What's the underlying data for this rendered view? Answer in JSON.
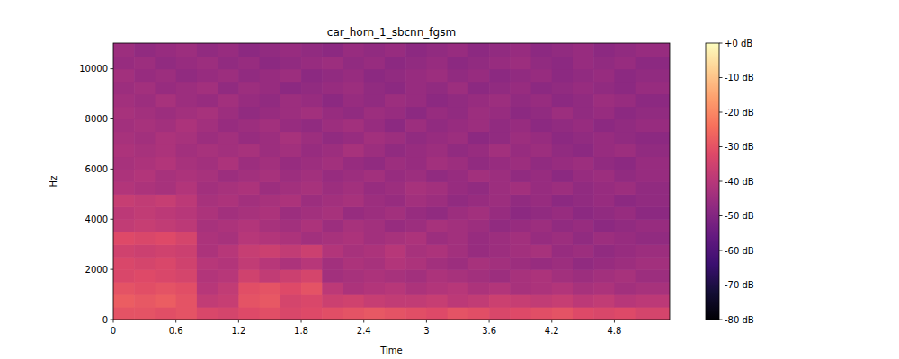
{
  "chart_data": {
    "type": "heatmap",
    "title": "car_horn_1_sbcnn_fgsm",
    "x_label": "Time",
    "y_label": "Hz",
    "x_edges": [
      0,
      0.2,
      0.4,
      0.6,
      0.8,
      1,
      1.2,
      1.4,
      1.6,
      1.8,
      2,
      2.2,
      2.4,
      2.6,
      2.8,
      3,
      3.2,
      3.4,
      3.6,
      3.8,
      4,
      4.2,
      4.4,
      4.6,
      4.8,
      5,
      5.33
    ],
    "y_edges": [
      0,
      500,
      1000,
      1500,
      2000,
      2500,
      3000,
      3500,
      4000,
      4500,
      5000,
      5500,
      6000,
      6500,
      7000,
      7500,
      8000,
      8500,
      9000,
      9500,
      10000,
      10500,
      11025
    ],
    "cells": [
      [
        -30,
        -30,
        -31,
        -30,
        -33,
        -34,
        -32,
        -31,
        -33,
        -32,
        -31,
        -30,
        -29,
        -30,
        -31,
        -32,
        -30,
        -31,
        -33,
        -32,
        -31,
        -30,
        -32,
        -33,
        -32,
        -34
      ],
      [
        -28,
        -29,
        -28,
        -30,
        -38,
        -37,
        -30,
        -29,
        -34,
        -33,
        -36,
        -35,
        -37,
        -38,
        -38,
        -37,
        -39,
        -38,
        -36,
        -37,
        -38,
        -37,
        -39,
        -38,
        -40,
        -39
      ],
      [
        -30,
        -31,
        -30,
        -31,
        -40,
        -38,
        -31,
        -30,
        -32,
        -30,
        -39,
        -42,
        -41,
        -40,
        -42,
        -41,
        -40,
        -42,
        -41,
        -43,
        -42,
        -41,
        -43,
        -42,
        -44,
        -43
      ],
      [
        -33,
        -32,
        -33,
        -34,
        -41,
        -40,
        -35,
        -38,
        -36,
        -34,
        -44,
        -43,
        -42,
        -43,
        -44,
        -42,
        -43,
        -44,
        -45,
        -43,
        -42,
        -44,
        -45,
        -44,
        -43,
        -45
      ],
      [
        -33,
        -34,
        -33,
        -35,
        -40,
        -41,
        -38,
        -40,
        -42,
        -40,
        -44,
        -42,
        -43,
        -41,
        -42,
        -44,
        -45,
        -43,
        -44,
        -45,
        -46,
        -45,
        -47,
        -46,
        -45,
        -44
      ],
      [
        -35,
        -36,
        -35,
        -36,
        -42,
        -40,
        -37,
        -36,
        -38,
        -36,
        -41,
        -43,
        -42,
        -40,
        -43,
        -42,
        -44,
        -46,
        -45,
        -44,
        -43,
        -46,
        -45,
        -47,
        -46,
        -45
      ],
      [
        -32,
        -33,
        -32,
        -34,
        -42,
        -43,
        -40,
        -41,
        -42,
        -44,
        -43,
        -42,
        -44,
        -43,
        -42,
        -45,
        -44,
        -46,
        -45,
        -44,
        -46,
        -45,
        -47,
        -45,
        -46,
        -47
      ],
      [
        -38,
        -37,
        -38,
        -39,
        -43,
        -42,
        -41,
        -43,
        -44,
        -42,
        -45,
        -43,
        -44,
        -46,
        -45,
        -43,
        -44,
        -45,
        -47,
        -46,
        -45,
        -47,
        -46,
        -48,
        -47,
        -46
      ],
      [
        -39,
        -38,
        -39,
        -40,
        -42,
        -44,
        -43,
        -42,
        -45,
        -44,
        -43,
        -46,
        -45,
        -44,
        -46,
        -47,
        -45,
        -44,
        -46,
        -48,
        -47,
        -46,
        -48,
        -47,
        -46,
        -48
      ],
      [
        -37,
        -38,
        -37,
        -39,
        -43,
        -42,
        -44,
        -43,
        -42,
        -45,
        -44,
        -43,
        -45,
        -46,
        -44,
        -45,
        -47,
        -46,
        -45,
        -47,
        -46,
        -48,
        -47,
        -46,
        -48,
        -47
      ],
      [
        -41,
        -42,
        -43,
        -41,
        -44,
        -43,
        -42,
        -45,
        -44,
        -43,
        -45,
        -44,
        -46,
        -45,
        -43,
        -44,
        -46,
        -47,
        -45,
        -44,
        -46,
        -45,
        -47,
        -46,
        -45,
        -47
      ],
      [
        -42,
        -41,
        -43,
        -42,
        -43,
        -45,
        -44,
        -43,
        -45,
        -44,
        -46,
        -45,
        -44,
        -46,
        -45,
        -47,
        -46,
        -44,
        -45,
        -47,
        -46,
        -48,
        -46,
        -45,
        -47,
        -46
      ],
      [
        -43,
        -42,
        -41,
        -43,
        -44,
        -42,
        -45,
        -44,
        -46,
        -45,
        -44,
        -46,
        -47,
        -45,
        -46,
        -44,
        -45,
        -47,
        -46,
        -45,
        -47,
        -46,
        -45,
        -47,
        -48,
        -46
      ],
      [
        -42,
        -43,
        -42,
        -44,
        -43,
        -44,
        -43,
        -45,
        -44,
        -46,
        -45,
        -43,
        -45,
        -47,
        -46,
        -45,
        -47,
        -46,
        -44,
        -46,
        -45,
        -47,
        -48,
        -46,
        -45,
        -47
      ],
      [
        -43,
        -44,
        -42,
        -43,
        -45,
        -44,
        -46,
        -45,
        -43,
        -45,
        -47,
        -46,
        -44,
        -45,
        -47,
        -46,
        -45,
        -48,
        -47,
        -45,
        -46,
        -48,
        -47,
        -46,
        -47,
        -48
      ],
      [
        -44,
        -43,
        -44,
        -42,
        -44,
        -46,
        -45,
        -44,
        -46,
        -47,
        -45,
        -44,
        -46,
        -48,
        -45,
        -47,
        -46,
        -45,
        -47,
        -46,
        -48,
        -47,
        -46,
        -48,
        -47,
        -46
      ],
      [
        -43,
        -44,
        -45,
        -44,
        -43,
        -45,
        -47,
        -46,
        -45,
        -44,
        -46,
        -47,
        -45,
        -46,
        -48,
        -46,
        -47,
        -45,
        -46,
        -48,
        -47,
        -45,
        -47,
        -46,
        -48,
        -47
      ],
      [
        -44,
        -45,
        -43,
        -45,
        -46,
        -44,
        -46,
        -47,
        -45,
        -46,
        -48,
        -46,
        -47,
        -45,
        -46,
        -48,
        -47,
        -46,
        -45,
        -47,
        -46,
        -48,
        -47,
        -45,
        -46,
        -48
      ],
      [
        -45,
        -44,
        -46,
        -45,
        -44,
        -47,
        -45,
        -46,
        -48,
        -47,
        -46,
        -45,
        -47,
        -48,
        -46,
        -47,
        -45,
        -48,
        -47,
        -46,
        -48,
        -47,
        -46,
        -47,
        -48,
        -46
      ],
      [
        -44,
        -46,
        -45,
        -47,
        -46,
        -45,
        -47,
        -46,
        -45,
        -48,
        -47,
        -46,
        -48,
        -47,
        -46,
        -45,
        -47,
        -46,
        -48,
        -47,
        -46,
        -48,
        -47,
        -46,
        -48,
        -47
      ],
      [
        -46,
        -45,
        -47,
        -46,
        -45,
        -47,
        -46,
        -48,
        -47,
        -46,
        -45,
        -47,
        -46,
        -48,
        -47,
        -46,
        -48,
        -47,
        -46,
        -45,
        -47,
        -48,
        -46,
        -47,
        -46,
        -48
      ],
      [
        -45,
        -47,
        -46,
        -45,
        -47,
        -46,
        -48,
        -47,
        -46,
        -47,
        -48,
        -46,
        -47,
        -46,
        -48,
        -47,
        -46,
        -48,
        -47,
        -46,
        -48,
        -47,
        -46,
        -48,
        -47,
        -46
      ]
    ],
    "xlim": [
      0,
      5.33
    ],
    "ylim": [
      0,
      11025
    ],
    "xticks": [
      0,
      0.6,
      1.2,
      1.8,
      2.4,
      3,
      3.6,
      4.2,
      4.8
    ],
    "yticks": [
      0,
      2000,
      4000,
      6000,
      8000,
      10000
    ],
    "colorbar": {
      "range": [
        -80,
        0
      ],
      "ticks": [
        {
          "value": 0,
          "label": "+0 dB"
        },
        {
          "value": -10,
          "label": "-10 dB"
        },
        {
          "value": -20,
          "label": "-20 dB"
        },
        {
          "value": -30,
          "label": "-30 dB"
        },
        {
          "value": -40,
          "label": "-40 dB"
        },
        {
          "value": -50,
          "label": "-50 dB"
        },
        {
          "value": -60,
          "label": "-60 dB"
        },
        {
          "value": -70,
          "label": "-70 dB"
        },
        {
          "value": -80,
          "label": "-80 dB"
        }
      ]
    }
  }
}
